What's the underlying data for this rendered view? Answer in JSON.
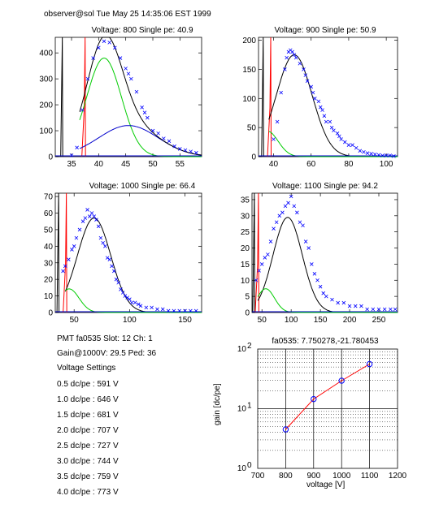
{
  "header": {
    "text": "observer@sol  Tue May 25 14:35:06 EST 1999"
  },
  "info": {
    "pmt_line": "PMT fa0535 Slot: 12 Ch: 1",
    "gain_line": "Gain@1000V: 29.5 Ped: 36",
    "settings_title": "Voltage Settings",
    "settings": [
      "0.5 dc/pe : 591 V",
      "1.0 dc/pe : 646 V",
      "1.5 dc/pe : 681 V",
      "2.0 dc/pe : 707 V",
      "2.5 dc/pe : 727 V",
      "3.0 dc/pe : 744 V",
      "3.5 dc/pe : 759 V",
      "4.0 dc/pe : 773 V"
    ]
  },
  "colors": {
    "data": "#0000ff",
    "fit": "#000000",
    "green": "#00cc00",
    "red": "#ff0000",
    "blue": "#0000cc"
  },
  "chart_data": [
    {
      "type": "scatter",
      "title": "Voltage: 800 Single pe: 40.9",
      "xlim": [
        32,
        59
      ],
      "ylim": [
        0,
        460
      ],
      "xticks": [
        35,
        40,
        45,
        50,
        55
      ],
      "yticks": [
        0,
        100,
        200,
        300,
        400
      ],
      "pedestal": {
        "black_x": 33.3,
        "red_x": 37.5
      },
      "fit": {
        "c1": {
          "amp": 380,
          "mu": 41,
          "sigma": 3.2
        },
        "c2": {
          "amp": 120,
          "mu": 45.5,
          "sigma": 5.5
        }
      },
      "points": [
        [
          35,
          5
        ],
        [
          36,
          35
        ],
        [
          37,
          180
        ],
        [
          38,
          300
        ],
        [
          39,
          380
        ],
        [
          40,
          420
        ],
        [
          41,
          445
        ],
        [
          42,
          440
        ],
        [
          43,
          420
        ],
        [
          44,
          380
        ],
        [
          45,
          340
        ],
        [
          45.5,
          320
        ],
        [
          46,
          300
        ],
        [
          47,
          250
        ],
        [
          48,
          190
        ],
        [
          48.5,
          170
        ],
        [
          49,
          150
        ],
        [
          50,
          100
        ],
        [
          51,
          90
        ],
        [
          52,
          70
        ],
        [
          53,
          60
        ],
        [
          54,
          40
        ],
        [
          55,
          30
        ],
        [
          56,
          25
        ],
        [
          57,
          20
        ],
        [
          58,
          15
        ]
      ]
    },
    {
      "type": "scatter",
      "title": "Voltage: 900 Single pe: 50.9",
      "xlim": [
        32,
        106
      ],
      "ylim": [
        0,
        205
      ],
      "xticks": [
        40,
        60,
        80,
        100
      ],
      "yticks": [
        0,
        50,
        100,
        150,
        200
      ],
      "pedestal": {
        "black_x": 34.5,
        "red_x": 38.5
      },
      "fit": {
        "c1": {
          "amp": 175,
          "mu": 51,
          "sigma": 9.5
        }
      },
      "points": [
        [
          40,
          30
        ],
        [
          42,
          60
        ],
        [
          44,
          110
        ],
        [
          46,
          150
        ],
        [
          47,
          170
        ],
        [
          48,
          180
        ],
        [
          49,
          183
        ],
        [
          50,
          180
        ],
        [
          51,
          175
        ],
        [
          52,
          170
        ],
        [
          54,
          160
        ],
        [
          56,
          150
        ],
        [
          57,
          140
        ],
        [
          58,
          130
        ],
        [
          60,
          120
        ],
        [
          61,
          110
        ],
        [
          62,
          100
        ],
        [
          64,
          95
        ],
        [
          65,
          85
        ],
        [
          66,
          80
        ],
        [
          67,
          70
        ],
        [
          68,
          60
        ],
        [
          70,
          60
        ],
        [
          71,
          50
        ],
        [
          72,
          45
        ],
        [
          74,
          40
        ],
        [
          75,
          35
        ],
        [
          76,
          30
        ],
        [
          78,
          25
        ],
        [
          80,
          20
        ],
        [
          82,
          20
        ],
        [
          84,
          15
        ],
        [
          86,
          10
        ],
        [
          88,
          8
        ],
        [
          90,
          6
        ],
        [
          92,
          5
        ],
        [
          94,
          4
        ],
        [
          96,
          3
        ],
        [
          98,
          2
        ],
        [
          100,
          2
        ],
        [
          102,
          2
        ],
        [
          104,
          1
        ]
      ]
    },
    {
      "type": "scatter",
      "title": "Voltage: 1000 Single pe: 66.4",
      "xlim": [
        33,
        165
      ],
      "ylim": [
        0,
        72
      ],
      "xticks": [
        50,
        100,
        150
      ],
      "yticks": [
        0,
        10,
        20,
        30,
        40,
        50,
        60,
        70
      ],
      "pedestal": {
        "black_x": 36,
        "red_x": 43
      },
      "fit": {
        "c1": {
          "amp": 57,
          "mu": 68,
          "sigma": 15
        }
      },
      "points": [
        [
          40,
          25
        ],
        [
          42,
          28
        ],
        [
          45,
          32
        ],
        [
          48,
          38
        ],
        [
          50,
          40
        ],
        [
          52,
          45
        ],
        [
          55,
          50
        ],
        [
          58,
          55
        ],
        [
          60,
          57
        ],
        [
          62,
          62
        ],
        [
          64,
          58
        ],
        [
          66,
          60
        ],
        [
          68,
          58
        ],
        [
          70,
          56
        ],
        [
          72,
          52
        ],
        [
          74,
          45
        ],
        [
          76,
          42
        ],
        [
          78,
          40
        ],
        [
          80,
          33
        ],
        [
          82,
          32
        ],
        [
          84,
          28
        ],
        [
          86,
          25
        ],
        [
          88,
          20
        ],
        [
          90,
          18
        ],
        [
          92,
          14
        ],
        [
          94,
          12
        ],
        [
          96,
          10
        ],
        [
          98,
          9
        ],
        [
          100,
          8
        ],
        [
          102,
          6
        ],
        [
          105,
          6
        ],
        [
          108,
          5
        ],
        [
          110,
          4
        ],
        [
          115,
          3
        ],
        [
          120,
          3
        ],
        [
          125,
          2
        ],
        [
          130,
          2
        ],
        [
          135,
          1
        ],
        [
          140,
          1
        ],
        [
          145,
          1
        ],
        [
          150,
          1
        ],
        [
          155,
          1
        ],
        [
          160,
          1
        ]
      ]
    },
    {
      "type": "scatter",
      "title": "Voltage: 1100 Single pe: 94.2",
      "xlim": [
        33,
        282
      ],
      "ylim": [
        0,
        37
      ],
      "xticks": [
        50,
        100,
        150,
        200,
        250
      ],
      "yticks": [
        0,
        5,
        10,
        15,
        20,
        25,
        30,
        35
      ],
      "pedestal": {
        "black_x": 37,
        "red_x": 44
      },
      "fit": {
        "c1": {
          "amp": 29.5,
          "mu": 94,
          "sigma": 25
        }
      },
      "points": [
        [
          40,
          10
        ],
        [
          45,
          13
        ],
        [
          50,
          15
        ],
        [
          55,
          17
        ],
        [
          60,
          18
        ],
        [
          65,
          22
        ],
        [
          70,
          26
        ],
        [
          75,
          28
        ],
        [
          80,
          30
        ],
        [
          85,
          31
        ],
        [
          90,
          33
        ],
        [
          95,
          34
        ],
        [
          100,
          36
        ],
        [
          105,
          33
        ],
        [
          110,
          31
        ],
        [
          115,
          28
        ],
        [
          120,
          27
        ],
        [
          125,
          22
        ],
        [
          130,
          20
        ],
        [
          135,
          15
        ],
        [
          140,
          12
        ],
        [
          145,
          10
        ],
        [
          150,
          8
        ],
        [
          155,
          6
        ],
        [
          160,
          5
        ],
        [
          170,
          4
        ],
        [
          180,
          3
        ],
        [
          190,
          3
        ],
        [
          200,
          2
        ],
        [
          210,
          2
        ],
        [
          220,
          2
        ],
        [
          230,
          1
        ],
        [
          240,
          1
        ],
        [
          250,
          1
        ],
        [
          260,
          1
        ],
        [
          270,
          1
        ],
        [
          278,
          1
        ]
      ]
    },
    {
      "type": "line",
      "title": "fa0535: 7.750278,-21.780453",
      "xlabel": "voltage [V]",
      "ylabel": "gain [dc/pe]",
      "xlim": [
        700,
        1200
      ],
      "ylim": [
        1,
        100
      ],
      "yscale": "log",
      "xticks": [
        700,
        800,
        900,
        1000,
        1100,
        1200
      ],
      "ytick_labels": [
        "10^0",
        "10^1",
        "10^2"
      ],
      "grid": true,
      "x": [
        800,
        900,
        1000,
        1100
      ],
      "y": [
        4.5,
        14.5,
        29.5,
        56
      ]
    }
  ]
}
